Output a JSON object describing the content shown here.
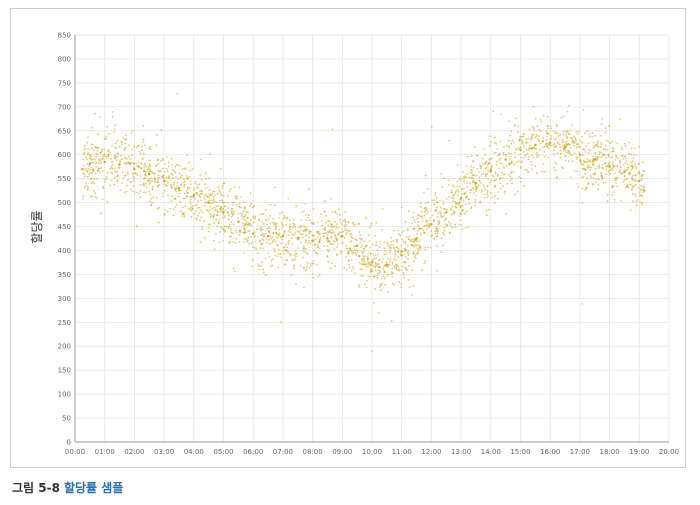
{
  "caption": {
    "number": "그림 5-8",
    "text": "할당률 샘플"
  },
  "colors": {
    "points": "#c9a007",
    "grid": "#e3e3e3",
    "axis": "#999999"
  },
  "chart_data": {
    "type": "scatter",
    "title": "",
    "xlabel": "",
    "ylabel": "할당률",
    "xlim": [
      "00:00",
      "20:00"
    ],
    "ylim": [
      0,
      850
    ],
    "x_ticks": [
      "00:00",
      "01:00",
      "02:00",
      "03:00",
      "04:00",
      "05:00",
      "06:00",
      "07:00",
      "08:00",
      "09:00",
      "10:00",
      "11:00",
      "12:00",
      "13:00",
      "14:00",
      "15:00",
      "16:00",
      "17:00",
      "18:00",
      "19:00",
      "20:00"
    ],
    "y_ticks": [
      0,
      50,
      100,
      150,
      200,
      250,
      300,
      350,
      400,
      450,
      500,
      550,
      600,
      650,
      700,
      750,
      800,
      850
    ],
    "grid": true,
    "legend": "none",
    "series": [
      {
        "x": [
          "00:15",
          "00:30",
          "01:00",
          "01:30",
          "02:00",
          "02:30",
          "03:00",
          "03:30",
          "04:00",
          "04:30",
          "05:00",
          "05:30",
          "06:00",
          "06:30",
          "07:00",
          "07:30",
          "08:00",
          "08:30",
          "09:00",
          "09:30",
          "10:00",
          "10:15",
          "10:30",
          "11:00",
          "11:30",
          "12:00",
          "12:30",
          "13:00",
          "13:30",
          "14:00",
          "14:30",
          "15:00",
          "15:30",
          "16:00",
          "16:30",
          "17:00",
          "17:30",
          "18:00",
          "18:30",
          "19:00",
          "19:10"
        ],
        "y": [
          570,
          580,
          585,
          580,
          570,
          560,
          545,
          530,
          515,
          500,
          480,
          460,
          435,
          430,
          430,
          425,
          420,
          425,
          430,
          410,
          375,
          365,
          370,
          390,
          425,
          455,
          480,
          510,
          540,
          565,
          590,
          610,
          620,
          625,
          615,
          600,
          590,
          575,
          565,
          545,
          525
        ]
      }
    ]
  }
}
